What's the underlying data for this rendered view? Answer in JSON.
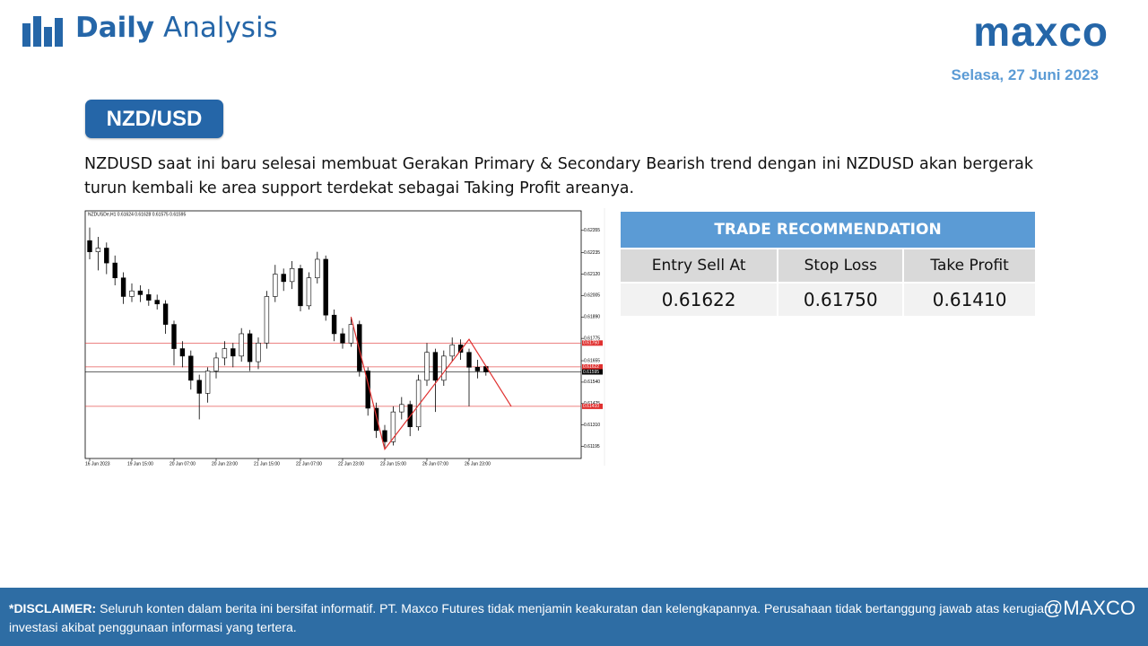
{
  "header": {
    "title_bold": "Daily",
    "title_light": "Analysis",
    "brand": "maxco",
    "date": "Selasa, 27 Juni 2023"
  },
  "badge": "NZD/USD",
  "description": "NZDUSD saat ini baru selesai membuat Gerakan Primary & Secondary Bearish trend dengan ini NZDUSD akan bergerak turun kembali ke area support terdekat sebagai Taking Profit areanya.",
  "chart_data": {
    "type": "candlestick",
    "header_text": "NZDUSDe,H1 0.61624 0.61628 0.61575 0.61595",
    "categories": [
      "16 Jun 2023",
      null,
      null,
      null,
      null,
      "19 Jun 15:00",
      null,
      null,
      null,
      null,
      "20 Jun 07:00",
      null,
      null,
      null,
      null,
      "20 Jun 23:00",
      null,
      null,
      null,
      null,
      "21 Jun 15:00",
      null,
      null,
      null,
      null,
      "22 Jun 07:00",
      null,
      null,
      null,
      null,
      "22 Jun 23:00",
      null,
      null,
      null,
      null,
      "23 Jun 15:00",
      null,
      null,
      null,
      null,
      "26 Jun 07:00",
      null,
      null,
      null,
      null,
      "26 Jun 23:00",
      null,
      null
    ],
    "open": [
      0.623,
      0.6224,
      0.6226,
      0.6218,
      0.621,
      0.62,
      0.6203,
      0.6201,
      0.6198,
      0.6196,
      0.6185,
      0.6172,
      0.6168,
      0.6155,
      0.6148,
      0.616,
      0.6167,
      0.6172,
      0.6168,
      0.618,
      0.6165,
      0.6175,
      0.62,
      0.6212,
      0.6208,
      0.6215,
      0.6195,
      0.621,
      0.622,
      0.619,
      0.618,
      0.6175,
      0.6185,
      0.616,
      0.614,
      0.6128,
      0.6122,
      0.6138,
      0.6142,
      0.613,
      0.6155,
      0.617,
      0.6155,
      0.6168,
      0.6174,
      0.617,
      0.6162,
      0.61624
    ],
    "high": [
      0.6237,
      0.6232,
      0.6229,
      0.6222,
      0.6213,
      0.6207,
      0.6206,
      0.6204,
      0.6201,
      0.6198,
      0.6187,
      0.6176,
      0.6171,
      0.6158,
      0.6162,
      0.617,
      0.6176,
      0.6175,
      0.6183,
      0.6182,
      0.6178,
      0.6203,
      0.6217,
      0.6215,
      0.6219,
      0.6217,
      0.6213,
      0.6224,
      0.6222,
      0.6193,
      0.6183,
      0.6189,
      0.6187,
      0.6162,
      0.6143,
      0.6131,
      0.6141,
      0.6146,
      0.6144,
      0.6158,
      0.6175,
      0.6172,
      0.6171,
      0.6178,
      0.6177,
      0.6172,
      0.6166,
      0.61628
    ],
    "low": [
      0.622,
      0.6214,
      0.6212,
      0.6206,
      0.6196,
      0.6197,
      0.6197,
      0.6195,
      0.6193,
      0.618,
      0.6163,
      0.6162,
      0.615,
      0.6134,
      0.6143,
      0.6156,
      0.6163,
      0.6162,
      0.6165,
      0.616,
      0.6161,
      0.6172,
      0.6197,
      0.6203,
      0.6204,
      0.6192,
      0.6193,
      0.6207,
      0.6187,
      0.6176,
      0.6172,
      0.6173,
      0.6157,
      0.6136,
      0.6124,
      0.6118,
      0.612,
      0.6134,
      0.6125,
      0.6128,
      0.6152,
      0.6138,
      0.6152,
      0.6165,
      0.6166,
      0.6141,
      0.6156,
      0.61575
    ],
    "close": [
      0.6224,
      0.6226,
      0.6218,
      0.621,
      0.62,
      0.6203,
      0.6201,
      0.6198,
      0.6196,
      0.6185,
      0.6172,
      0.6168,
      0.6155,
      0.6148,
      0.616,
      0.6167,
      0.6172,
      0.6168,
      0.618,
      0.6165,
      0.6175,
      0.62,
      0.6212,
      0.6208,
      0.6215,
      0.6195,
      0.621,
      0.622,
      0.619,
      0.618,
      0.6175,
      0.6185,
      0.616,
      0.614,
      0.6128,
      0.6122,
      0.6138,
      0.6142,
      0.613,
      0.6155,
      0.617,
      0.6155,
      0.6168,
      0.6174,
      0.617,
      0.6162,
      0.616,
      0.61595
    ],
    "up_color": "#ffffff",
    "down_color": "#000000",
    "outline_color": "#000000",
    "ylim": [
      0.6113,
      0.6246
    ],
    "yticks": [
      0.62355,
      0.62235,
      {
        "value": 0.6212,
        "label": "0.62120"
      },
      0.62005,
      {
        "value": 0.6189,
        "label": "0.61890"
      },
      0.61775,
      0.61655,
      {
        "value": 0.6154,
        "label": "0.61540"
      },
      0.61425,
      {
        "value": 0.6131,
        "label": "0.61310"
      },
      0.61195
    ],
    "levels": [
      {
        "value": 0.6175,
        "label": "0.61750",
        "color": "#e0302f"
      },
      {
        "value": 0.61622,
        "label": "0.61622",
        "color": "#e0302f"
      },
      {
        "value": 0.61595,
        "label": "0.61595",
        "color": "#000000"
      },
      {
        "value": 0.6141,
        "label": "0.61410",
        "color": "#e0302f"
      }
    ],
    "zigzag": {
      "x": [
        31,
        35,
        45,
        50
      ],
      "y": [
        0.6189,
        0.6118,
        0.6177,
        0.6141
      ],
      "color": "#e0302f"
    }
  },
  "trade_table": {
    "title": "TRADE RECOMMENDATION",
    "columns": [
      "Entry Sell At",
      "Stop Loss",
      "Take Profit"
    ],
    "rows": [
      [
        "0.61622",
        "0.61750",
        "0.61410"
      ]
    ]
  },
  "footer": {
    "disclaimer_label": "*DISCLAIMER:",
    "disclaimer_text": "Seluruh konten dalam berita ini bersifat informatif. PT. Maxco Futures tidak menjamin keakuratan dan kelengkapannya. Perusahaan tidak bertanggung jawab atas kerugian investasi akibat penggunaan informasi yang tertera.",
    "social": "@MAXCO"
  }
}
